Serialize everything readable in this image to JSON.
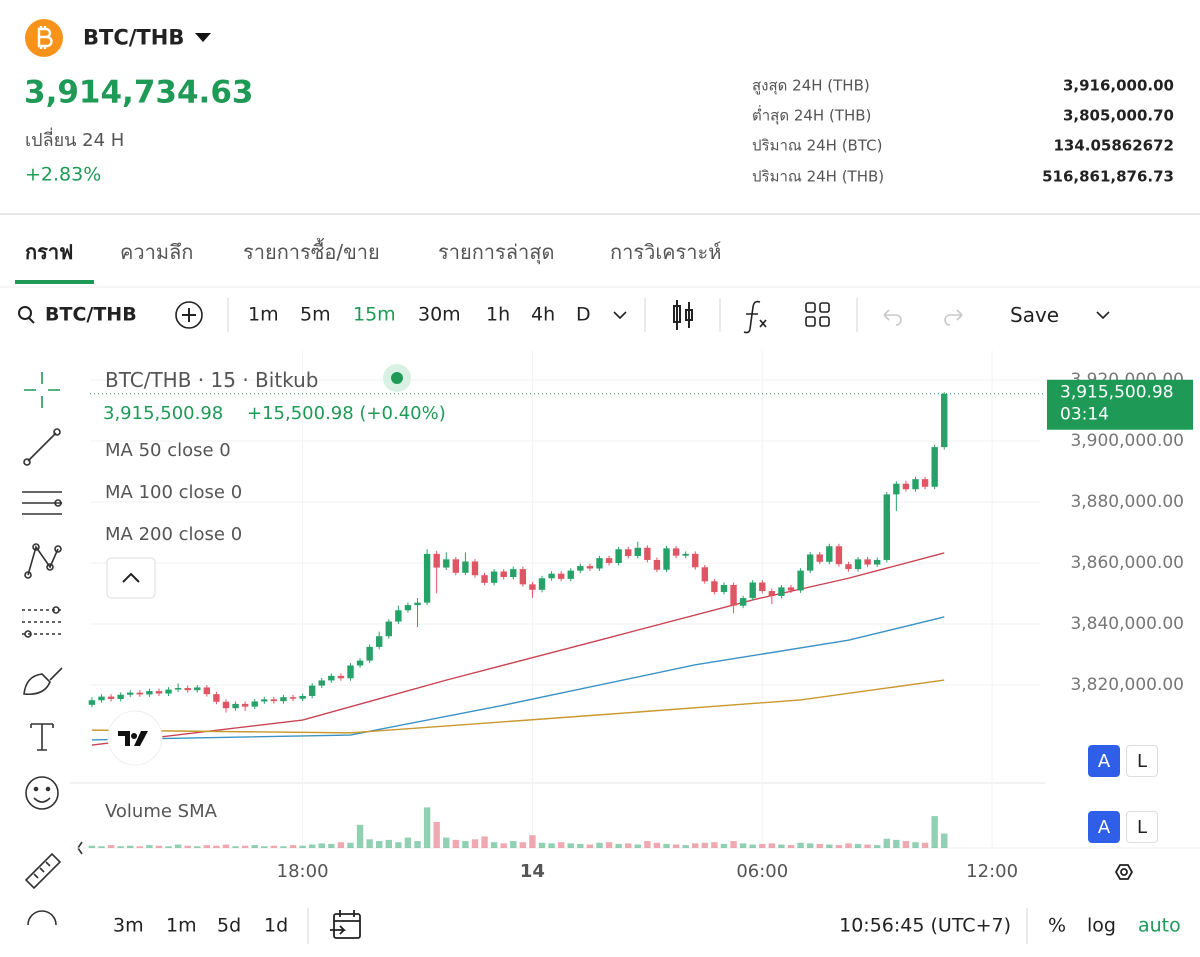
{
  "header": {
    "pair": "BTC/THB",
    "price": "3,914,734.63",
    "change_label": "เปลี่ยน 24 H",
    "change": "+2.83%",
    "stats": [
      {
        "label": "สูงสุด 24H (THB)",
        "value": "3,916,000.00"
      },
      {
        "label": "ต่ำสุด 24H (THB)",
        "value": "3,805,000.70"
      },
      {
        "label": "ปริมาณ 24H (BTC)",
        "value": "134.05862672"
      },
      {
        "label": "ปริมาณ 24H (THB)",
        "value": "516,861,876.73"
      }
    ]
  },
  "tabs": [
    "กราฟ",
    "ความลึก",
    "รายการซื้อ/ขาย",
    "รายการล่าสุด",
    "การวิเคราะห์"
  ],
  "toolbar": {
    "symbol": "BTC/THB",
    "intervals": [
      "1m",
      "5m",
      "15m",
      "30m",
      "1h",
      "4h",
      "D"
    ],
    "save": "Save"
  },
  "legend": {
    "title": "BTC/THB · 15 · Bitkub",
    "last": "3,915,500.98",
    "change": "+15,500.98 (+0.40%)"
  },
  "volume_label": "Volume SMA",
  "scale_buttons": [
    "A",
    "L"
  ],
  "chart_data": {
    "type": "candlestick",
    "xlim": [
      -0.2,
      99
    ],
    "xticks": [
      {
        "value": 22,
        "label": "18:00"
      },
      {
        "value": 46,
        "label": "14"
      },
      {
        "value": 70,
        "label": "06:00"
      },
      {
        "value": 94,
        "label": "12:00"
      }
    ],
    "ylim": [
      3788850,
      3929840
    ],
    "yticks": [
      {
        "value": 3920000,
        "label": "3,920,000.00"
      },
      {
        "value": 3900000,
        "label": "3,900,000.00"
      },
      {
        "value": 3880000,
        "label": "3,880,000.00"
      },
      {
        "value": 3860000,
        "label": "3,860,000.00"
      },
      {
        "value": 3840000,
        "label": "3,840,000.00"
      },
      {
        "value": 3820000,
        "label": "3,820,000.00"
      }
    ],
    "grid": true,
    "up_color": "#26a269",
    "down_color": "#e05563",
    "candles": [
      [
        3813500,
        3816000,
        3812700,
        3815000
      ],
      [
        3815000,
        3817000,
        3814200,
        3816200
      ],
      [
        3816200,
        3817000,
        3814600,
        3815400
      ],
      [
        3815400,
        3817600,
        3814600,
        3816800
      ],
      [
        3816800,
        3818300,
        3816000,
        3817500
      ],
      [
        3817500,
        3818300,
        3816100,
        3816900
      ],
      [
        3816900,
        3818800,
        3816100,
        3818000
      ],
      [
        3818000,
        3818800,
        3816400,
        3817200
      ],
      [
        3817200,
        3819300,
        3816400,
        3818500
      ],
      [
        3818500,
        3820500,
        3817700,
        3819000
      ],
      [
        3819000,
        3819800,
        3817500,
        3818300
      ],
      [
        3818300,
        3820000,
        3817500,
        3819200
      ],
      [
        3819200,
        3820000,
        3816200,
        3817000
      ],
      [
        3817000,
        3817800,
        3813700,
        3814500
      ],
      [
        3814500,
        3815300,
        3811000,
        3812400
      ],
      [
        3812400,
        3814600,
        3811600,
        3813800
      ],
      [
        3813800,
        3814600,
        3811500,
        3812900
      ],
      [
        3812900,
        3815400,
        3812100,
        3814600
      ],
      [
        3814600,
        3816100,
        3813800,
        3815300
      ],
      [
        3815300,
        3816100,
        3813900,
        3814700
      ],
      [
        3814700,
        3816800,
        3813900,
        3816000
      ],
      [
        3816000,
        3816800,
        3814700,
        3815500
      ],
      [
        3815500,
        3817200,
        3814700,
        3816400
      ],
      [
        3816400,
        3820600,
        3815600,
        3819800
      ],
      [
        3819800,
        3822300,
        3819000,
        3821500
      ],
      [
        3821500,
        3823800,
        3820700,
        3823000
      ],
      [
        3823000,
        3823800,
        3821400,
        3822200
      ],
      [
        3822200,
        3827200,
        3821400,
        3826400
      ],
      [
        3826400,
        3828800,
        3825600,
        3828000
      ],
      [
        3828000,
        3833300,
        3827200,
        3832500
      ],
      [
        3832500,
        3837500,
        3831700,
        3836000
      ],
      [
        3836000,
        3841600,
        3835200,
        3840800
      ],
      [
        3840800,
        3846000,
        3840000,
        3844500
      ],
      [
        3844500,
        3847000,
        3843700,
        3846200
      ],
      [
        3846200,
        3848500,
        3839000,
        3847000
      ],
      [
        3847000,
        3864500,
        3846200,
        3863000
      ],
      [
        3863000,
        3864000,
        3850000,
        3858500
      ],
      [
        3858500,
        3863500,
        3857700,
        3861200
      ],
      [
        3861200,
        3862000,
        3856000,
        3856800
      ],
      [
        3856800,
        3863500,
        3856000,
        3860500
      ],
      [
        3860500,
        3861300,
        3855200,
        3856000
      ],
      [
        3856000,
        3856800,
        3852700,
        3853500
      ],
      [
        3853500,
        3858000,
        3852700,
        3857200
      ],
      [
        3857200,
        3858000,
        3854600,
        3855400
      ],
      [
        3855400,
        3858800,
        3854600,
        3858000
      ],
      [
        3858000,
        3858800,
        3852200,
        3853000
      ],
      [
        3853000,
        3853800,
        3848500,
        3851200
      ],
      [
        3851200,
        3855800,
        3850400,
        3855000
      ],
      [
        3855000,
        3857300,
        3854200,
        3856500
      ],
      [
        3856500,
        3857300,
        3854000,
        3854800
      ],
      [
        3854800,
        3858300,
        3854000,
        3857500
      ],
      [
        3857500,
        3859800,
        3856700,
        3859000
      ],
      [
        3859000,
        3859800,
        3857400,
        3858200
      ],
      [
        3858200,
        3862400,
        3857400,
        3861600
      ],
      [
        3861600,
        3862400,
        3859200,
        3860000
      ],
      [
        3860000,
        3865300,
        3859200,
        3864500
      ],
      [
        3864500,
        3865300,
        3861500,
        3862300
      ],
      [
        3862300,
        3867000,
        3861500,
        3865000
      ],
      [
        3865000,
        3865800,
        3860200,
        3861000
      ],
      [
        3861000,
        3861800,
        3857000,
        3857800
      ],
      [
        3857800,
        3865600,
        3857000,
        3864800
      ],
      [
        3864800,
        3865600,
        3861600,
        3862400
      ],
      [
        3862400,
        3863800,
        3861600,
        3863000
      ],
      [
        3863000,
        3863800,
        3857800,
        3858600
      ],
      [
        3858600,
        3859400,
        3853200,
        3854000
      ],
      [
        3854000,
        3854800,
        3849700,
        3850500
      ],
      [
        3850500,
        3853600,
        3849700,
        3852800
      ],
      [
        3852800,
        3853600,
        3843500,
        3846000
      ],
      [
        3846000,
        3849300,
        3845200,
        3848500
      ],
      [
        3848500,
        3854400,
        3847700,
        3853600
      ],
      [
        3853600,
        3854400,
        3850000,
        3850800
      ],
      [
        3850800,
        3851600,
        3846500,
        3849200
      ],
      [
        3849200,
        3852800,
        3848400,
        3852000
      ],
      [
        3852000,
        3852800,
        3850200,
        3851000
      ],
      [
        3851000,
        3858300,
        3850200,
        3857500
      ],
      [
        3857500,
        3863600,
        3856700,
        3862800
      ],
      [
        3862800,
        3863600,
        3859600,
        3860400
      ],
      [
        3860400,
        3866300,
        3859600,
        3865500
      ],
      [
        3865500,
        3866300,
        3858800,
        3859600
      ],
      [
        3859600,
        3860400,
        3857200,
        3858000
      ],
      [
        3858000,
        3862000,
        3857200,
        3861200
      ],
      [
        3861200,
        3862000,
        3858700,
        3859500
      ],
      [
        3859500,
        3861800,
        3858700,
        3861000
      ],
      [
        3861000,
        3883300,
        3860200,
        3882500
      ],
      [
        3882500,
        3886800,
        3877000,
        3886000
      ],
      [
        3886000,
        3887000,
        3883400,
        3884200
      ],
      [
        3884200,
        3888300,
        3883400,
        3887500
      ],
      [
        3887500,
        3888300,
        3884200,
        3885000
      ],
      [
        3885000,
        3898800,
        3884200,
        3898000
      ],
      [
        3898000,
        3916000,
        3897200,
        3915500.98
      ]
    ],
    "volume_lim": [
      0,
      100
    ],
    "volume": [
      4,
      3,
      5,
      3,
      4,
      3,
      5,
      4,
      3,
      6,
      4,
      3,
      5,
      4,
      6,
      3,
      4,
      5,
      3,
      4,
      3,
      5,
      4,
      6,
      8,
      7,
      10,
      9,
      40,
      15,
      12,
      14,
      10,
      18,
      12,
      70,
      45,
      18,
      14,
      12,
      15,
      20,
      10,
      8,
      12,
      10,
      22,
      9,
      8,
      10,
      8,
      7,
      6,
      9,
      10,
      7,
      8,
      6,
      12,
      9,
      7,
      6,
      5,
      8,
      9,
      10,
      7,
      12,
      8,
      6,
      7,
      8,
      6,
      5,
      9,
      8,
      7,
      6,
      5,
      8,
      7,
      6,
      5,
      16,
      14,
      12,
      10,
      9,
      55,
      25
    ],
    "series": [
      {
        "name": "MA 50 close 0",
        "color": "#c94452",
        "x": [
          0,
          22,
          37,
          53,
          69,
          79,
          89
        ],
        "values": [
          3800300,
          3808500,
          3821600,
          3834700,
          3847900,
          3855000,
          3863300
        ]
      },
      {
        "name": "MA 100 close 0",
        "color": "#3a93c4",
        "x": [
          0,
          27,
          43,
          63,
          79,
          89
        ],
        "values": [
          3802000,
          3803600,
          3813400,
          3826600,
          3834700,
          3842300
        ]
      },
      {
        "name": "MA 200 close 0",
        "color": "#c9982e",
        "x": [
          0,
          27,
          53,
          74,
          89
        ],
        "values": [
          3805200,
          3804300,
          3810200,
          3815100,
          3821600
        ]
      }
    ],
    "last_price": {
      "value": 3915500.98,
      "label": "3,915,500.98"
    },
    "countdown": "03:14"
  },
  "footer": {
    "ranges": [
      "3m",
      "1m",
      "5d",
      "1d"
    ],
    "time": "10:56:45 (UTC+7)",
    "options": [
      "%",
      "log",
      "auto"
    ]
  }
}
